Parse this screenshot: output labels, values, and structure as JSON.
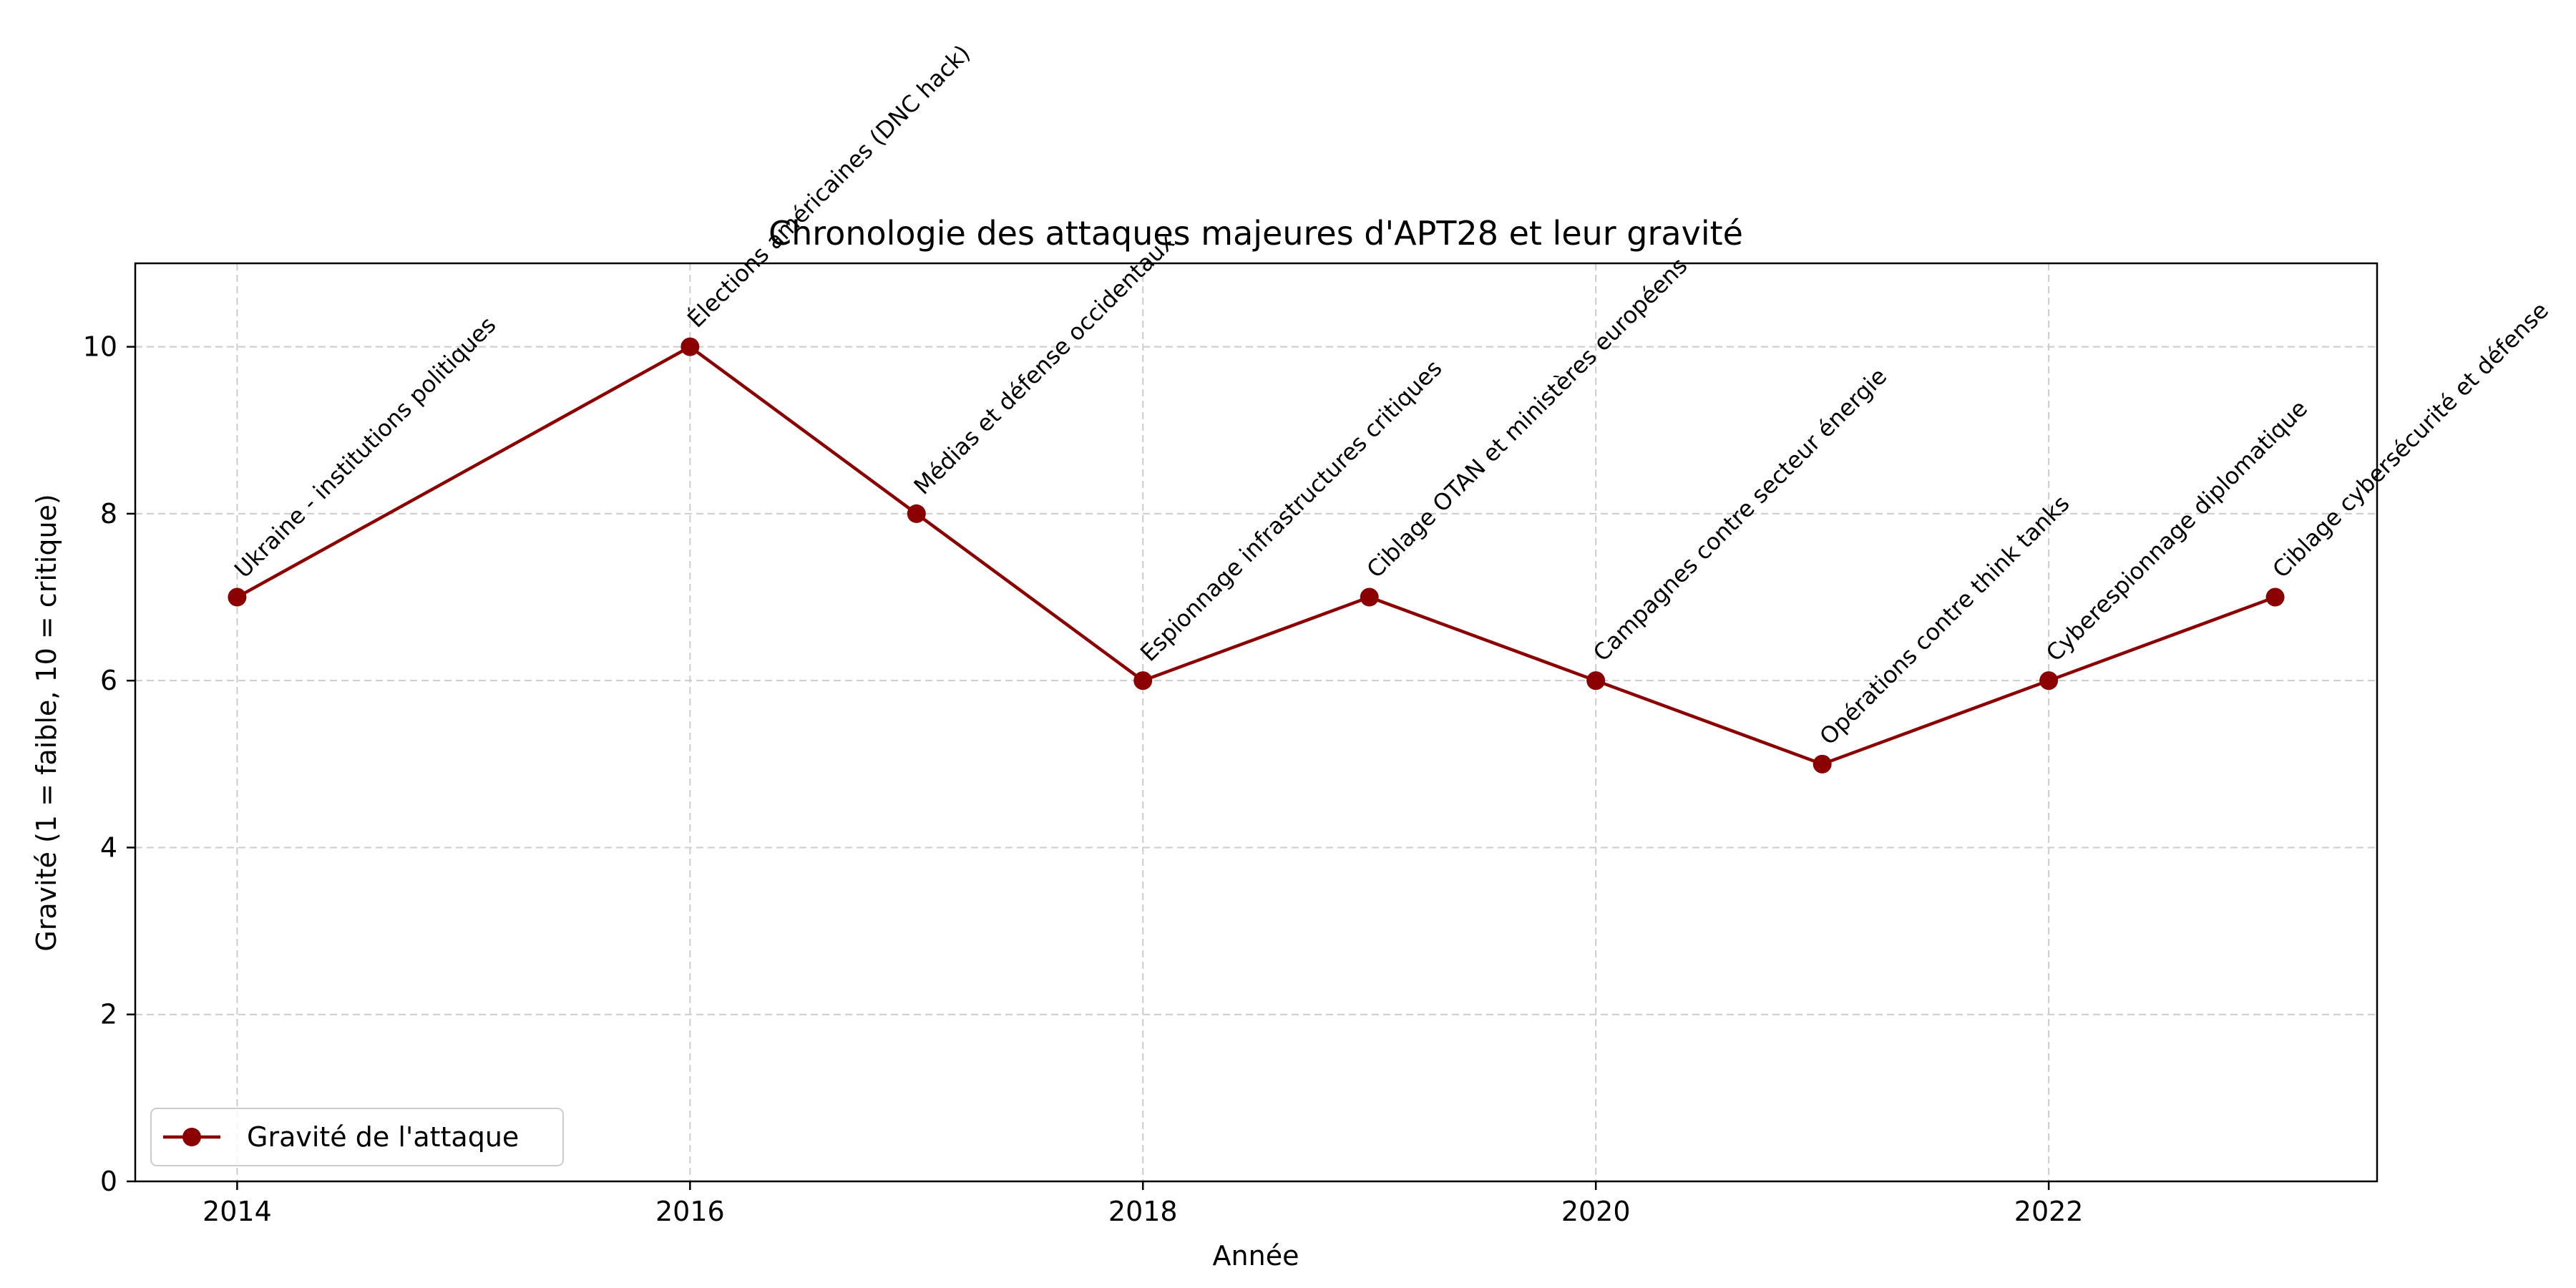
{
  "chart_data": {
    "type": "line",
    "title": "Chronologie des attaques majeures d'APT28 et leur gravité",
    "xlabel": "Année",
    "ylabel": "Gravité (1 = faible, 10 = critique)",
    "xlim": [
      2013.55,
      2023.45
    ],
    "ylim": [
      0,
      11
    ],
    "x_ticks": [
      "2014",
      "2016",
      "2018",
      "2020",
      "2022"
    ],
    "y_ticks": [
      "0",
      "2",
      "4",
      "6",
      "8",
      "10"
    ],
    "grid": true,
    "legend_position": "lower-left",
    "series": [
      {
        "name": "Gravité de l'attaque",
        "color": "#8b0000",
        "marker": "circle",
        "x": [
          2014,
          2016,
          2017,
          2018,
          2019,
          2020,
          2021,
          2022,
          2023
        ],
        "values": [
          7,
          10,
          8,
          6,
          7,
          6,
          5,
          6,
          7
        ],
        "annotations": [
          "Ukraine - institutions politiques",
          "Élections américaines (DNC hack)",
          "Médias et défense occidentaux",
          "Espionnage infrastructures critiques",
          "Ciblage OTAN et ministères européens",
          "Campagnes contre secteur énergie",
          "Opérations contre think tanks",
          "Cyberespionnage diplomatique",
          "Ciblage cybersécurité et défense"
        ]
      }
    ]
  }
}
